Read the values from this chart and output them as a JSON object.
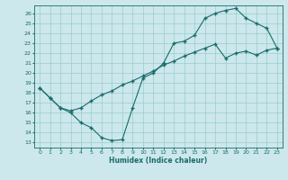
{
  "xlabel": "Humidex (Indice chaleur)",
  "bg_color": "#cce8ec",
  "grid_color": "#99cccc",
  "line_color": "#1a6b6b",
  "marker": "+",
  "xlim": [
    -0.5,
    23.5
  ],
  "ylim": [
    12.5,
    26.8
  ],
  "yticks": [
    13,
    14,
    15,
    16,
    17,
    18,
    19,
    20,
    21,
    22,
    23,
    24,
    25,
    26
  ],
  "xticks": [
    0,
    1,
    2,
    3,
    4,
    5,
    6,
    7,
    8,
    9,
    10,
    11,
    12,
    13,
    14,
    15,
    16,
    17,
    18,
    19,
    20,
    21,
    22,
    23
  ],
  "line1_x": [
    0,
    1,
    2,
    3,
    4,
    5,
    6,
    7,
    8,
    9,
    10,
    11,
    12,
    13,
    14,
    15,
    16,
    17,
    18,
    19,
    20,
    21,
    22,
    23
  ],
  "line1_y": [
    18.5,
    17.5,
    16.5,
    16.0,
    15.0,
    14.5,
    13.5,
    13.2,
    13.3,
    16.5,
    19.5,
    20.0,
    21.0,
    23.0,
    23.2,
    23.8,
    25.5,
    26.0,
    26.3,
    26.5,
    25.5,
    25.0,
    24.5,
    22.5
  ],
  "line2_x": [
    0,
    1,
    2,
    3,
    4,
    5,
    6,
    7,
    8,
    9,
    10,
    11,
    12,
    13,
    14,
    15,
    16,
    17,
    18,
    19,
    20,
    21,
    22,
    23
  ],
  "line2_y": [
    18.5,
    17.5,
    16.5,
    16.2,
    16.5,
    17.2,
    17.8,
    18.2,
    18.8,
    19.2,
    19.7,
    20.2,
    20.8,
    21.2,
    21.7,
    22.1,
    22.5,
    22.9,
    21.5,
    22.0,
    22.2,
    21.8,
    22.3,
    22.5
  ]
}
